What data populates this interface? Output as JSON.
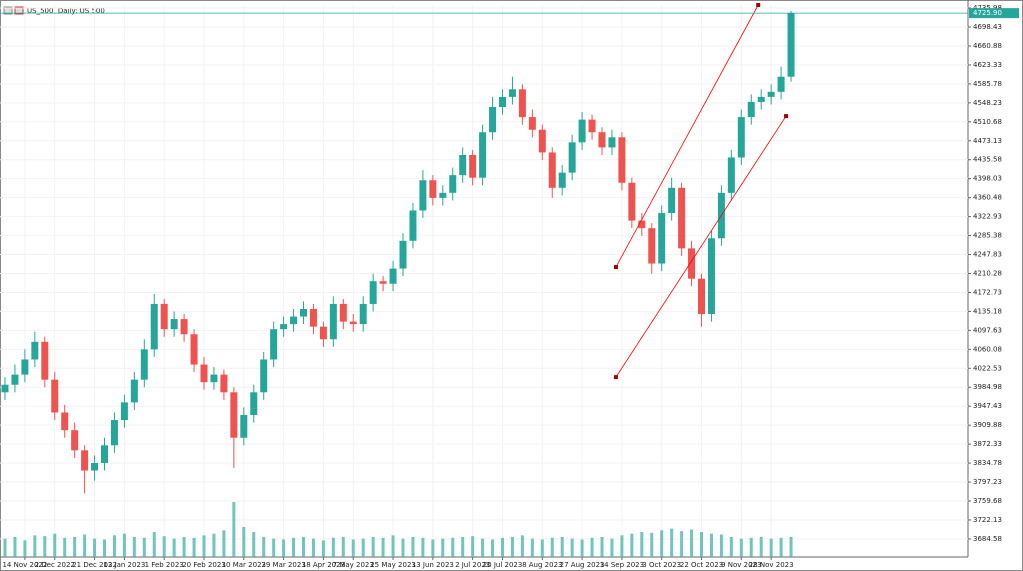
{
  "chart_data": {
    "type": "candlestick",
    "title": "US_500, Daily: US 500",
    "categories": [
      null,
      null,
      "14 Nov 2022",
      null,
      null,
      "2 Dec 2022",
      null,
      null,
      null,
      "21 Dec 2022",
      null,
      null,
      "13 Jan 2023",
      null,
      null,
      null,
      "1 Feb 2023",
      null,
      null,
      null,
      "20 Feb 2023",
      null,
      null,
      null,
      "10 Mar 2023",
      null,
      null,
      null,
      "29 Mar 2023",
      null,
      null,
      null,
      "18 Apr 2023",
      null,
      null,
      "7 May 2023",
      null,
      null,
      null,
      "25 May 2023",
      null,
      null,
      null,
      "13 Jun 2023",
      null,
      null,
      null,
      "2 Jul 2023",
      null,
      null,
      "20 Jul 2023",
      null,
      null,
      null,
      "8 Aug 2023",
      null,
      null,
      null,
      "27 Aug 2023",
      null,
      null,
      null,
      "14 Sep 2023",
      null,
      null,
      null,
      "3 Oct 2023",
      null,
      null,
      null,
      "22 Oct 2023",
      null,
      null,
      null,
      "9 Nov 2023",
      null,
      null,
      "28 Nov 2023",
      null,
      null
    ],
    "open": [
      3975,
      3990,
      4010,
      4040,
      4075,
      4000,
      3935,
      3900,
      3860,
      3820,
      3835,
      3870,
      3920,
      3955,
      4000,
      4060,
      4150,
      4100,
      4120,
      4090,
      4030,
      3995,
      4010,
      3975,
      3885,
      3930,
      3975,
      4040,
      4100,
      4110,
      4125,
      4140,
      4105,
      4080,
      4150,
      4115,
      4110,
      4150,
      4195,
      4190,
      4220,
      4275,
      4335,
      4395,
      4360,
      4370,
      4405,
      4445,
      4400,
      4490,
      4540,
      4560,
      4575,
      4520,
      4495,
      4450,
      4380,
      4410,
      4470,
      4515,
      4490,
      4460,
      4480,
      4390,
      4315,
      4300,
      4230,
      4330,
      4380,
      4260,
      4200,
      4130,
      4280,
      4370,
      4440,
      4520,
      4550,
      4560,
      4570,
      4600
    ],
    "high": [
      4005,
      4030,
      4060,
      4095,
      4085,
      4015,
      3950,
      3915,
      3870,
      3850,
      3885,
      3935,
      3970,
      4015,
      4080,
      4170,
      4160,
      4135,
      4130,
      4100,
      4045,
      4025,
      4020,
      3985,
      3945,
      3990,
      4055,
      4115,
      4125,
      4140,
      4155,
      4150,
      4115,
      4165,
      4160,
      4130,
      4165,
      4210,
      4205,
      4235,
      4290,
      4350,
      4415,
      4405,
      4385,
      4420,
      4460,
      4455,
      4505,
      4560,
      4575,
      4600,
      4585,
      4535,
      4505,
      4460,
      4425,
      4485,
      4530,
      4525,
      4500,
      4495,
      4490,
      4400,
      4330,
      4310,
      4345,
      4400,
      4390,
      4275,
      4210,
      4295,
      4385,
      4455,
      4535,
      4565,
      4575,
      4585,
      4620,
      4730
    ],
    "low": [
      3960,
      3975,
      3995,
      4025,
      3985,
      3920,
      3885,
      3845,
      3775,
      3800,
      3820,
      3855,
      3905,
      3940,
      3985,
      4045,
      4085,
      4085,
      4075,
      4015,
      3980,
      3980,
      3960,
      3825,
      3870,
      3915,
      3960,
      4025,
      4085,
      4095,
      4110,
      4090,
      4065,
      4065,
      4100,
      4095,
      4095,
      4135,
      4175,
      4175,
      4205,
      4260,
      4320,
      4345,
      4345,
      4355,
      4390,
      4385,
      4385,
      4475,
      4525,
      4545,
      4505,
      4480,
      4435,
      4360,
      4365,
      4395,
      4455,
      4475,
      4445,
      4445,
      4375,
      4300,
      4285,
      4210,
      4215,
      4315,
      4245,
      4185,
      4105,
      4115,
      4265,
      4355,
      4425,
      4505,
      4535,
      4545,
      4555,
      4590
    ],
    "close": [
      3990,
      4010,
      4040,
      4075,
      4000,
      3935,
      3900,
      3860,
      3820,
      3835,
      3870,
      3920,
      3955,
      4000,
      4060,
      4150,
      4100,
      4120,
      4090,
      4030,
      3995,
      4010,
      3975,
      3885,
      3930,
      3975,
      4040,
      4100,
      4110,
      4125,
      4140,
      4105,
      4080,
      4150,
      4115,
      4110,
      4150,
      4195,
      4190,
      4220,
      4275,
      4335,
      4395,
      4360,
      4370,
      4405,
      4445,
      4400,
      4490,
      4540,
      4560,
      4575,
      4520,
      4495,
      4450,
      4380,
      4410,
      4470,
      4515,
      4490,
      4460,
      4480,
      4390,
      4315,
      4300,
      4230,
      4330,
      4380,
      4260,
      4200,
      4130,
      4280,
      4370,
      4440,
      4520,
      4550,
      4560,
      4570,
      4600,
      4726
    ],
    "volume": [
      110,
      120,
      100,
      130,
      125,
      140,
      115,
      120,
      135,
      110,
      105,
      130,
      140,
      120,
      115,
      150,
      125,
      110,
      120,
      115,
      130,
      140,
      160,
      330,
      180,
      150,
      120,
      110,
      105,
      115,
      120,
      110,
      100,
      115,
      120,
      105,
      110,
      120,
      115,
      130,
      110,
      120,
      115,
      105,
      110,
      115,
      120,
      125,
      110,
      105,
      115,
      120,
      130,
      110,
      105,
      115,
      120,
      110,
      105,
      115,
      120,
      110,
      130,
      140,
      150,
      145,
      160,
      170,
      155,
      165,
      150,
      140,
      135,
      120,
      110,
      115,
      120,
      110,
      115,
      120
    ],
    "up_color": "#26a69a",
    "down_color": "#ef5350",
    "volume_color": "#4db6ac",
    "ylim": [
      3648.8,
      4742.0
    ],
    "yticks": [
      4735.98,
      4698.43,
      4660.88,
      4623.33,
      4585.78,
      4548.23,
      4510.68,
      4473.13,
      4435.58,
      4398.03,
      4360.48,
      4322.93,
      4285.38,
      4247.83,
      4210.28,
      4172.73,
      4135.18,
      4097.63,
      4060.08,
      4022.53,
      3984.98,
      3947.43,
      3909.88,
      3872.33,
      3834.78,
      3797.23,
      3759.68,
      3722.13,
      3684.58
    ],
    "grid": true,
    "last_price": {
      "value": 4725.9,
      "label": "4725.90"
    },
    "last_price_color": "#26a69a",
    "trend_lines": [
      {
        "color": "#ff0000",
        "x": [
          61.4,
          75.7
        ],
        "y": [
          4223,
          4742
        ]
      },
      {
        "color": "#ff0000",
        "x": [
          61.4,
          78.5
        ],
        "y": [
          4005,
          4522
        ]
      }
    ]
  }
}
